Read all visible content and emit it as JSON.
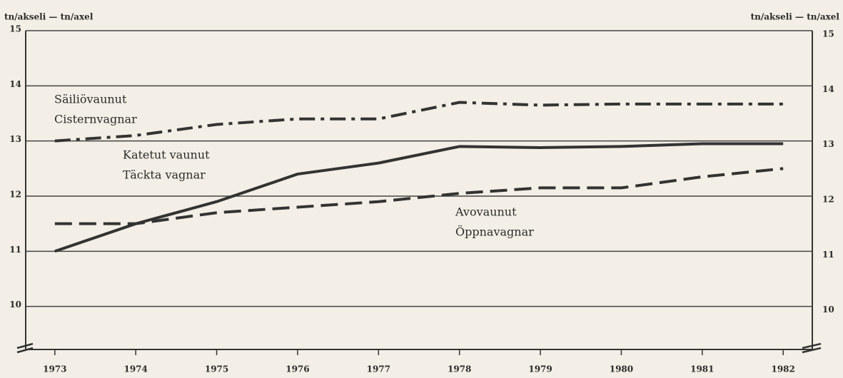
{
  "chart_data": {
    "type": "line",
    "ylabel": "tn/akseli — tn/axel",
    "y2label": "tn/akseli — tn/axel",
    "x": [
      1973,
      1974,
      1975,
      1976,
      1977,
      1978,
      1979,
      1980,
      1981,
      1982
    ],
    "xlim": [
      1972.64,
      1982.36
    ],
    "xticks": [
      1973,
      1974,
      1975,
      1976,
      1977,
      1978,
      1979,
      1980,
      1981,
      1982
    ],
    "ylim": [
      9.22,
      15
    ],
    "yticks": [
      10,
      11,
      12,
      13,
      14,
      15
    ],
    "y2lim": [
      9.22,
      15
    ],
    "y2ticks": [
      10,
      11,
      12,
      13,
      14,
      15
    ],
    "grid": true,
    "series": [
      {
        "labels": [
          "Säiliövaunut",
          "Cisternvagnar"
        ],
        "color": "#333333",
        "dash": "dash-dot",
        "values": [
          13.0,
          13.1,
          13.3,
          13.4,
          13.4,
          13.7,
          13.65,
          13.67,
          13.67,
          13.67
        ]
      },
      {
        "labels": [
          "Katetut vaunut",
          "Täckta vagnar"
        ],
        "color": "#333333",
        "dash": "solid",
        "values": [
          11.0,
          11.5,
          11.9,
          12.4,
          12.6,
          12.9,
          12.88,
          12.9,
          12.95,
          12.95
        ]
      },
      {
        "labels": [
          "Avovaunut",
          "Öppnavagnar"
        ],
        "color": "#333333",
        "dash": "dashed",
        "values": [
          11.5,
          11.5,
          11.7,
          11.8,
          11.9,
          12.05,
          12.15,
          12.15,
          12.35,
          12.5
        ]
      }
    ]
  }
}
